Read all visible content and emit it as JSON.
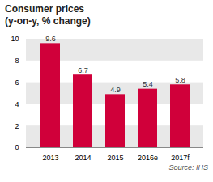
{
  "chart_data": {
    "type": "bar",
    "title": "Consumer prices",
    "subtitle": "(y-on-y, % change)",
    "caption": "Source: IHS",
    "categories": [
      "2013",
      "2014",
      "2015",
      "2016e",
      "2017f"
    ],
    "values": [
      9.6,
      6.7,
      4.9,
      5.4,
      5.8
    ],
    "color": "#d0003a",
    "ylim": [
      0,
      10
    ],
    "yticks": [
      0,
      2,
      4,
      6,
      8,
      10
    ],
    "grid": true,
    "data_labels": true
  }
}
